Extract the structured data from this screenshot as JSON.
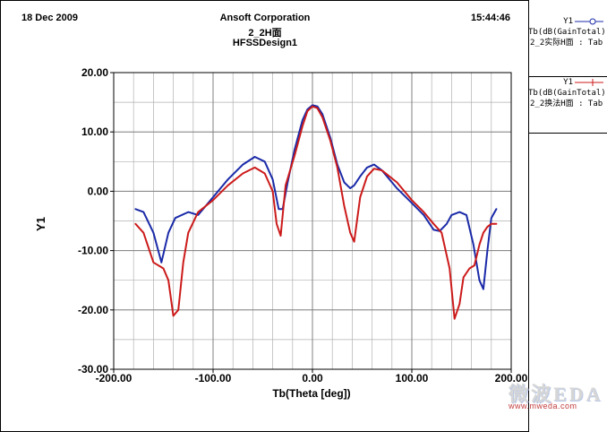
{
  "header": {
    "date": "18 Dec 2009",
    "company": "Ansoft Corporation",
    "plot_name": "2_2H面",
    "design": "HFSSDesign1",
    "time": "15:44:46"
  },
  "legend": {
    "entries": [
      {
        "name": "Y1",
        "expr": "Tb(dB(GainTotal)",
        "source": "2_2实际H面 : Tab",
        "color": "#1a2aa8",
        "marker": "circle"
      },
      {
        "name": "Y1",
        "expr": "Tb(dB(GainTotal)",
        "source": "2_2换法H面 : Tab",
        "color": "#cc1a1a",
        "marker": "plus"
      }
    ]
  },
  "watermark": {
    "title": "微波EDA",
    "url": "www.mweda.com"
  },
  "colors": {
    "grid": "#b0b0b0",
    "axes": "#000000",
    "background": "#ffffff"
  },
  "chart_data": {
    "type": "line",
    "title": "",
    "xlabel": "Tb(Theta [deg])",
    "ylabel": "Y1",
    "xlim": [
      -200,
      200
    ],
    "ylim": [
      -30,
      20
    ],
    "x_ticks": [
      -200,
      -100,
      0,
      100,
      200
    ],
    "x_tick_labels": [
      "-200.00",
      "-100.00",
      "0.00",
      "100.00",
      "200.00"
    ],
    "y_ticks": [
      -30,
      -20,
      -10,
      0,
      10,
      20
    ],
    "y_tick_labels": [
      "-30.00",
      "-20.00",
      "-10.00",
      "0.00",
      "10.00",
      "20.00"
    ],
    "grid": true,
    "series": [
      {
        "name": "Y1",
        "color": "#1a2aa8",
        "x": [
          -178,
          -170,
          -160,
          -152,
          -145,
          -138,
          -125,
          -115,
          -100,
          -85,
          -70,
          -58,
          -48,
          -40,
          -34,
          -30,
          -25,
          -18,
          -10,
          -5,
          0,
          5,
          10,
          18,
          25,
          32,
          38,
          42,
          48,
          55,
          62,
          70,
          85,
          100,
          112,
          122,
          128,
          135,
          140,
          148,
          155,
          162,
          168,
          172,
          176,
          180,
          185
        ],
        "y": [
          -3,
          -3.5,
          -7,
          -12,
          -7,
          -4.5,
          -3.5,
          -4,
          -1,
          2,
          4.5,
          5.8,
          5,
          2,
          -3,
          -3,
          1.5,
          7,
          12,
          13.8,
          14.5,
          14.3,
          13,
          9,
          4.5,
          1.5,
          0.5,
          1,
          2.5,
          4,
          4.5,
          3.5,
          0.5,
          -2,
          -4,
          -6.5,
          -6.7,
          -5.5,
          -4,
          -3.5,
          -4,
          -9,
          -15,
          -16.5,
          -10,
          -4.5,
          -3
        ]
      },
      {
        "name": "Y1",
        "color": "#cc1a1a",
        "x": [
          -178,
          -170,
          -160,
          -150,
          -145,
          -140,
          -135,
          -130,
          -125,
          -115,
          -100,
          -85,
          -70,
          -58,
          -48,
          -40,
          -36,
          -32,
          -27,
          -18,
          -10,
          -5,
          0,
          5,
          10,
          18,
          25,
          32,
          38,
          42,
          48,
          55,
          62,
          70,
          85,
          100,
          112,
          122,
          130,
          138,
          143,
          148,
          152,
          158,
          163,
          168,
          172,
          176,
          180,
          185
        ],
        "y": [
          -5.5,
          -7,
          -12,
          -13,
          -15,
          -21,
          -20,
          -12,
          -7,
          -3.5,
          -1.5,
          1,
          3,
          4,
          3,
          0,
          -5.5,
          -7.5,
          1,
          6,
          11,
          13.5,
          14.3,
          14,
          12.5,
          8.5,
          4,
          -2.5,
          -7,
          -8.5,
          -1,
          2.5,
          3.8,
          3.5,
          1.5,
          -1.5,
          -3.5,
          -5.5,
          -7,
          -13,
          -21.5,
          -19,
          -14.5,
          -13,
          -12.5,
          -9,
          -7,
          -6,
          -5.5,
          -5.5
        ]
      }
    ]
  }
}
